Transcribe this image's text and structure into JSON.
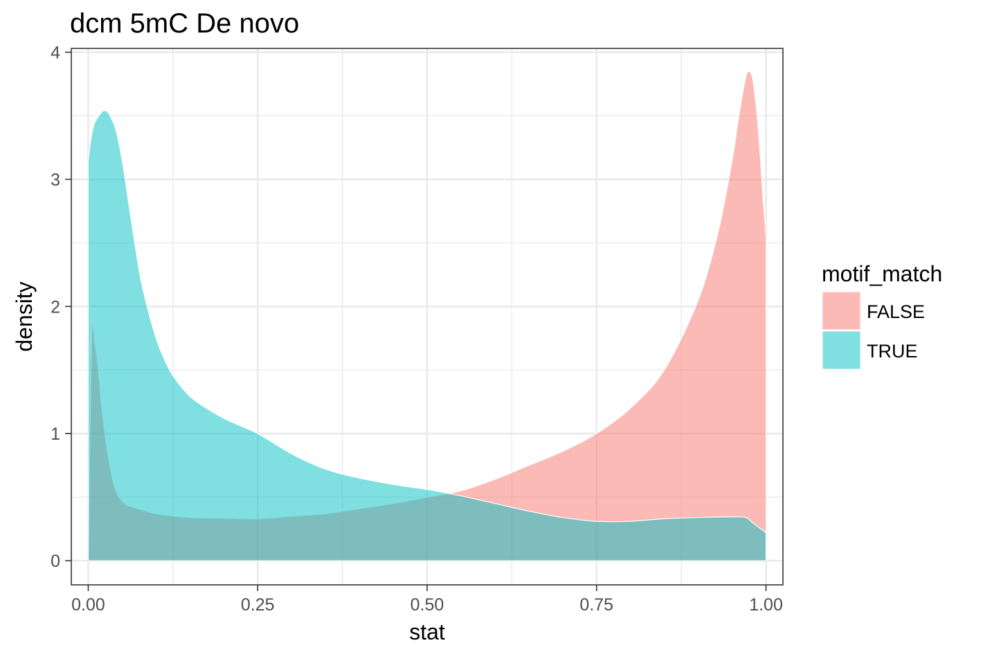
{
  "chart_data": {
    "type": "area",
    "title": "dcm 5mC De novo",
    "xlabel": "stat",
    "ylabel": "density",
    "xlim": [
      -0.025,
      1.025
    ],
    "ylim": [
      -0.19,
      4.03
    ],
    "x_ticks": [
      0,
      0.25,
      0.5,
      0.75,
      1
    ],
    "x_tick_labels": [
      "0.00",
      "0.25",
      "0.50",
      "0.75",
      "1.00"
    ],
    "y_ticks": [
      0,
      1,
      2,
      3,
      4
    ],
    "y_tick_labels": [
      "0",
      "1",
      "2",
      "3",
      "4"
    ],
    "grid": true,
    "legend": {
      "title": "motif_match",
      "position": "right"
    },
    "series": [
      {
        "name": "FALSE",
        "color": "#F8766D",
        "x": [
          0.0,
          0.005,
          0.01,
          0.015,
          0.02,
          0.03,
          0.04,
          0.05,
          0.06,
          0.08,
          0.1,
          0.15,
          0.2,
          0.25,
          0.3,
          0.35,
          0.4,
          0.45,
          0.5,
          0.55,
          0.6,
          0.65,
          0.7,
          0.75,
          0.8,
          0.85,
          0.9,
          0.93,
          0.95,
          0.96,
          0.97,
          0.975,
          0.98,
          0.985,
          0.99,
          0.995,
          1.0
        ],
        "y": [
          0.0,
          1.75,
          1.7,
          1.5,
          1.2,
          0.8,
          0.56,
          0.47,
          0.43,
          0.4,
          0.37,
          0.34,
          0.335,
          0.33,
          0.35,
          0.37,
          0.41,
          0.45,
          0.5,
          0.55,
          0.64,
          0.75,
          0.86,
          1.0,
          1.2,
          1.5,
          2.05,
          2.6,
          3.15,
          3.5,
          3.8,
          3.85,
          3.8,
          3.6,
          3.3,
          2.9,
          2.55
        ]
      },
      {
        "name": "TRUE",
        "color": "#00BFC4",
        "x": [
          0.0,
          0.005,
          0.01,
          0.02,
          0.025,
          0.03,
          0.04,
          0.05,
          0.06,
          0.07,
          0.08,
          0.1,
          0.12,
          0.14,
          0.16,
          0.2,
          0.25,
          0.3,
          0.35,
          0.4,
          0.45,
          0.5,
          0.55,
          0.6,
          0.65,
          0.7,
          0.75,
          0.8,
          0.85,
          0.9,
          0.95,
          0.97,
          0.98,
          0.99,
          1.0
        ],
        "y": [
          3.15,
          3.35,
          3.45,
          3.53,
          3.54,
          3.52,
          3.4,
          3.15,
          2.8,
          2.45,
          2.15,
          1.75,
          1.5,
          1.35,
          1.25,
          1.12,
          1.0,
          0.84,
          0.72,
          0.65,
          0.6,
          0.56,
          0.51,
          0.45,
          0.39,
          0.34,
          0.31,
          0.31,
          0.33,
          0.34,
          0.345,
          0.34,
          0.3,
          0.26,
          0.22
        ]
      }
    ]
  }
}
